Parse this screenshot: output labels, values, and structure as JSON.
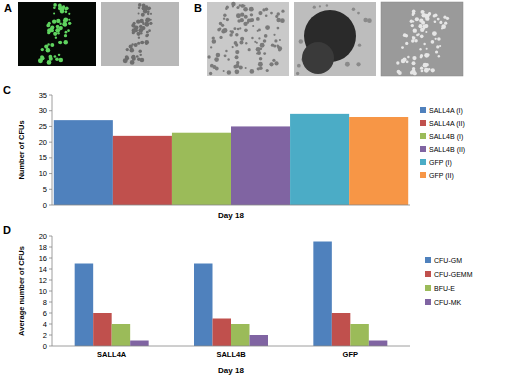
{
  "panel_labels": [
    "A",
    "B",
    "C",
    "D"
  ],
  "chart_data": [
    {
      "type": "bar",
      "y_label": "Number of CFUs",
      "x_label": "Day 18",
      "categories": [
        null
      ],
      "series": [
        {
          "name": "SALL4A (I)",
          "color": "#4f81bd",
          "values": [
            27
          ]
        },
        {
          "name": "SALL4A (II)",
          "color": "#c0504d",
          "values": [
            22
          ]
        },
        {
          "name": "SALL4B (I)",
          "color": "#9bbb59",
          "values": [
            23
          ]
        },
        {
          "name": "SALL4B (II)",
          "color": "#8064a2",
          "values": [
            25
          ]
        },
        {
          "name": "GFP (I)",
          "color": "#4bacc6",
          "values": [
            29
          ]
        },
        {
          "name": "GFP (II)",
          "color": "#f79646",
          "values": [
            28
          ]
        }
      ],
      "ylim": [
        0,
        35
      ],
      "yticks": [
        0,
        5,
        10,
        15,
        20,
        25,
        30,
        35
      ],
      "grid": false,
      "legend": "right"
    },
    {
      "type": "bar",
      "y_label": "Average number of CFUs",
      "x_label": "Day 18",
      "categories": [
        "SALL4A",
        "SALL4B",
        "GFP"
      ],
      "series": [
        {
          "name": "CFU-GM",
          "color": "#4f81bd",
          "values": [
            15,
            15,
            19
          ]
        },
        {
          "name": "CFU-GEMM",
          "color": "#c0504d",
          "values": [
            6,
            5,
            6
          ]
        },
        {
          "name": "BFU-E",
          "color": "#9bbb59",
          "values": [
            4,
            4,
            4
          ]
        },
        {
          "name": "CFU-MK",
          "color": "#8064a2",
          "values": [
            1,
            2,
            1
          ]
        }
      ],
      "ylim": [
        0,
        20
      ],
      "yticks": [
        0,
        2,
        4,
        6,
        8,
        10,
        12,
        14,
        16,
        18,
        20
      ],
      "grid": false,
      "legend": "right"
    }
  ]
}
